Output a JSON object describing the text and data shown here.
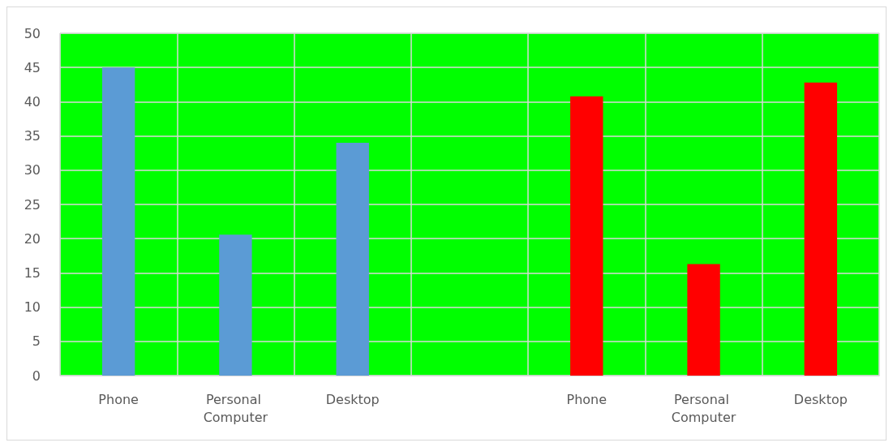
{
  "chart_data": {
    "type": "bar",
    "categories": [
      "Phone",
      "Personal Computer",
      "Desktop",
      null,
      "Phone",
      "Personal Computer",
      "Desktop"
    ],
    "values": [
      45,
      20.6,
      34,
      null,
      40.8,
      16.3,
      42.8
    ],
    "colors": [
      "#5b9bd5",
      "#5b9bd5",
      "#5b9bd5",
      null,
      "#ff0000",
      "#ff0000",
      "#ff0000"
    ],
    "ylim": [
      0,
      50
    ],
    "yticks": [
      0,
      5,
      10,
      15,
      20,
      25,
      30,
      35,
      40,
      45,
      50
    ],
    "grid": true
  }
}
